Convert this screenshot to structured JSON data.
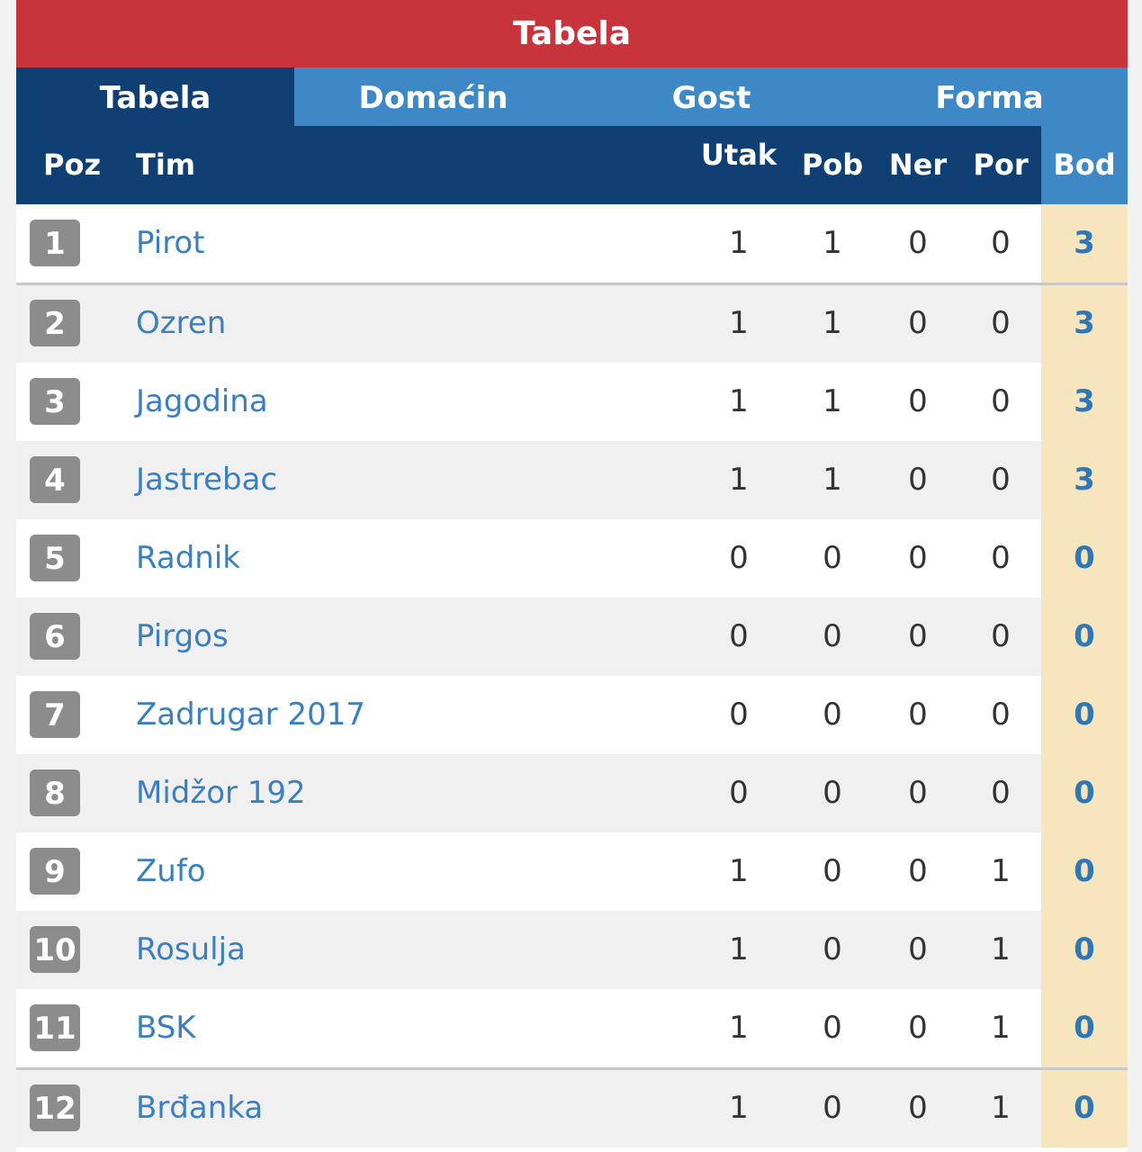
{
  "header": {
    "title": "Tabela"
  },
  "tabs": [
    "Tabela",
    "Domaćin",
    "Gost",
    "Forma"
  ],
  "table": {
    "columns": [
      "Poz",
      "Tim",
      "Utak",
      "Pob",
      "Ner",
      "Por",
      "Bod"
    ],
    "rows": [
      [
        1,
        "Pirot",
        1,
        1,
        0,
        0,
        3
      ],
      [
        2,
        "Ozren",
        1,
        1,
        0,
        0,
        3
      ],
      [
        3,
        "Jagodina",
        1,
        1,
        0,
        0,
        3
      ],
      [
        4,
        "Jastrebac",
        1,
        1,
        0,
        0,
        3
      ],
      [
        5,
        "Radnik",
        0,
        0,
        0,
        0,
        0
      ],
      [
        6,
        "Pirgos",
        0,
        0,
        0,
        0,
        0
      ],
      [
        7,
        "Zadrugar 2017",
        0,
        0,
        0,
        0,
        0
      ],
      [
        8,
        "Midžor 192",
        0,
        0,
        0,
        0,
        0
      ],
      [
        9,
        "Zufo",
        1,
        0,
        0,
        1,
        0
      ],
      [
        10,
        "Rosulja",
        1,
        0,
        0,
        1,
        0
      ],
      [
        11,
        "BSK",
        1,
        0,
        0,
        1,
        0
      ],
      [
        12,
        "Brđanka",
        1,
        0,
        0,
        1,
        0
      ]
    ]
  }
}
